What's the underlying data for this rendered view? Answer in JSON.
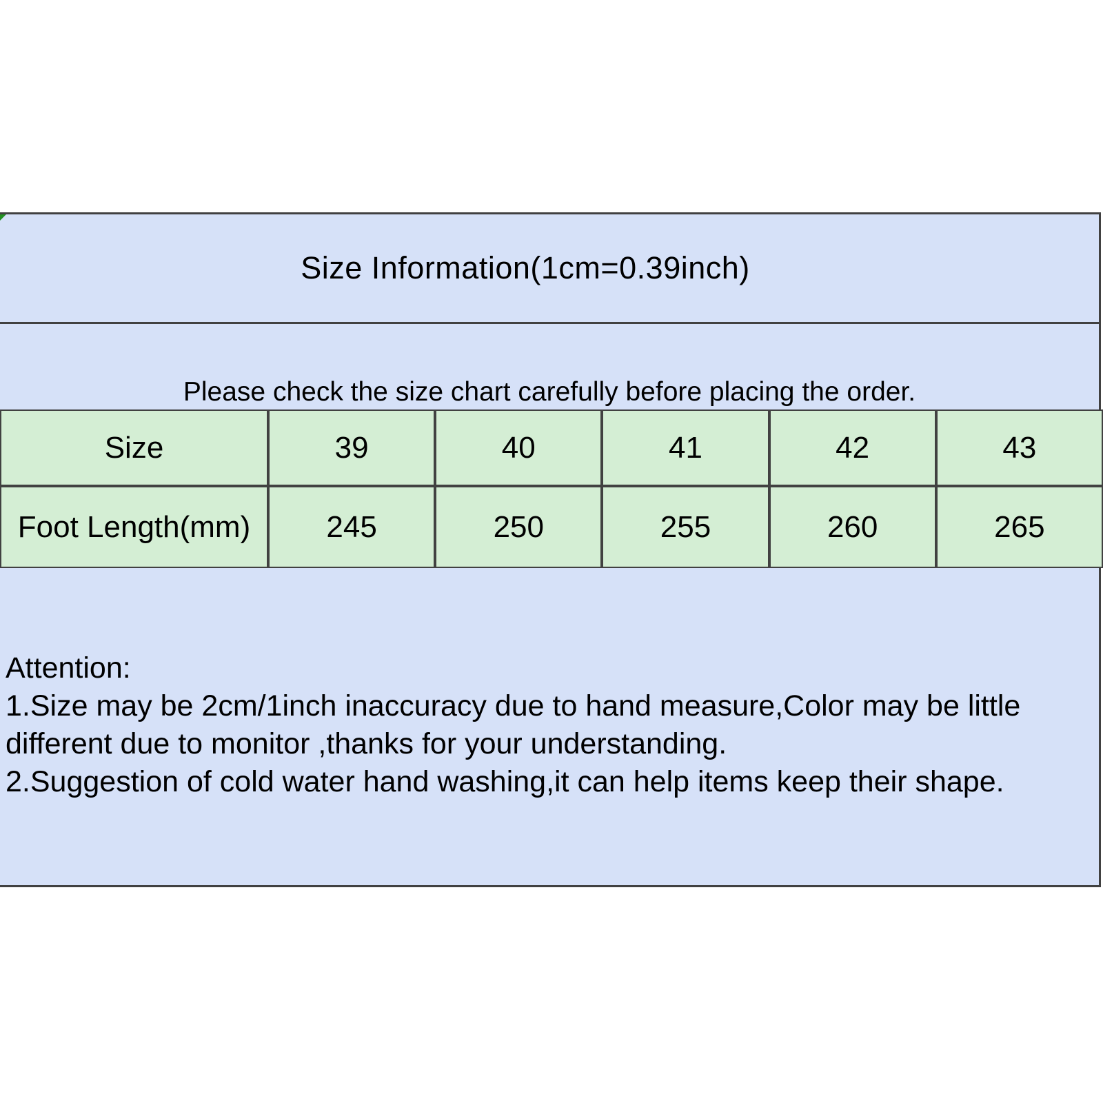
{
  "title": "Size Information(1cm=0.39inch)",
  "subtitle": "Please check the size chart carefully before placing the order.",
  "chart_data": {
    "type": "table",
    "title": "Size Information(1cm=0.39inch)",
    "columns": [
      "Size",
      "39",
      "40",
      "41",
      "42",
      "43"
    ],
    "rows": [
      [
        "Foot Length(mm)",
        "245",
        "250",
        "255",
        "260",
        "265"
      ]
    ]
  },
  "table": {
    "rows": [
      {
        "cells": [
          "Size",
          "39",
          "40",
          "41",
          "42",
          "43"
        ]
      },
      {
        "cells": [
          "Foot Length(mm)",
          "245",
          "250",
          "255",
          "260",
          "265"
        ]
      }
    ]
  },
  "attention": {
    "heading": "Attention:",
    "line1": "1.Size may be 2cm/1inch inaccuracy due to hand measure,Color may be little",
    "line2": "different due to monitor ,thanks for your understanding.",
    "line3": "2.Suggestion of cold water hand washing,it can help items keep their shape."
  },
  "colors": {
    "panel_bg": "#d6e1f8",
    "cell_bg": "#d4eed4",
    "border": "#414141"
  }
}
